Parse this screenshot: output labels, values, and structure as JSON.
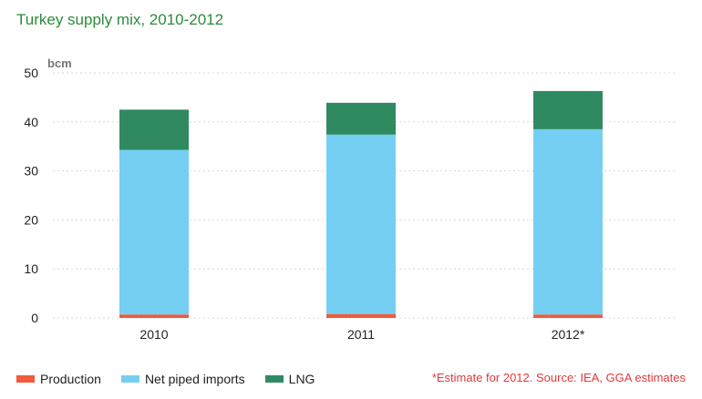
{
  "chart_data": {
    "type": "bar",
    "stacked": true,
    "title": "Turkey supply mix, 2010-2012",
    "ylabel": "bcm",
    "xlabel": "",
    "ylim": [
      0,
      50
    ],
    "yticks": [
      0,
      10,
      20,
      30,
      40,
      50
    ],
    "grid": true,
    "legend_position": "bottom-left",
    "categories": [
      "2010",
      "2011",
      "2012*"
    ],
    "series": [
      {
        "name": "Production",
        "color": "#f15a3a",
        "values": [
          0.7,
          0.8,
          0.7
        ]
      },
      {
        "name": "Net piped imports",
        "color": "#74cff2",
        "values": [
          33.6,
          36.6,
          37.8
        ]
      },
      {
        "name": "LNG",
        "color": "#2f8a62",
        "values": [
          8.2,
          6.5,
          7.8
        ]
      }
    ],
    "annotation": "*Estimate for 2012. Source: IEA, GGA estimates"
  }
}
